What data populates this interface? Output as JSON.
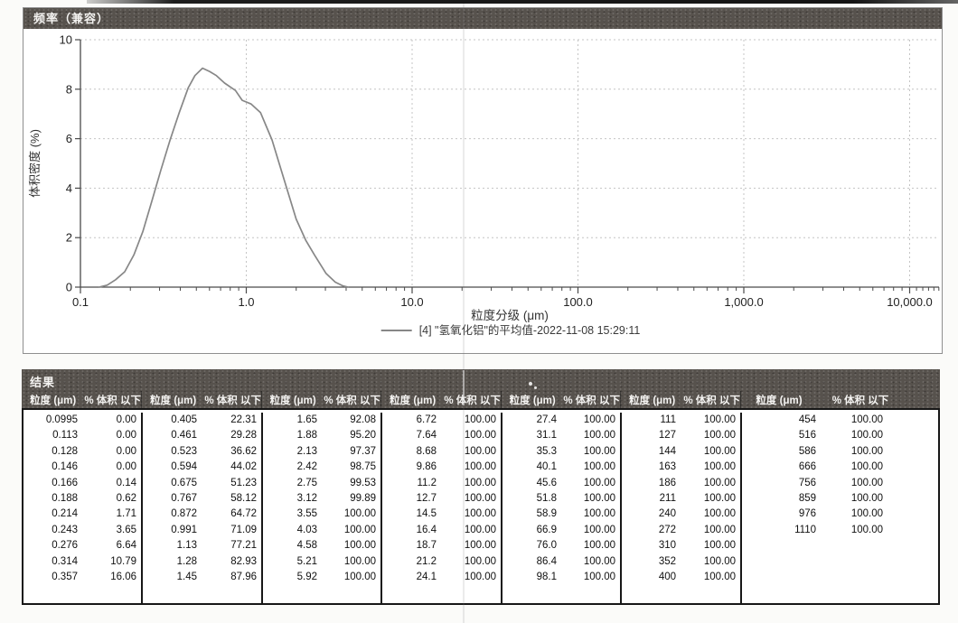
{
  "colors": {
    "header_bar": "#57524d",
    "curve": "#878787",
    "grid": "#c4c4c4",
    "axis": "#4a4a4a"
  },
  "chart_panel": {
    "title": "频率（兼容）"
  },
  "chart_data": {
    "type": "line",
    "title": "频率（兼容）",
    "xlabel": "粒度分级 (μm)",
    "ylabel": "体积密度 (%)",
    "x_scale": "log",
    "xlim": [
      0.1,
      15000
    ],
    "ylim": [
      0,
      10
    ],
    "grid": "dashed",
    "legend_position": "bottom-center",
    "x_tick_values": [
      0.1,
      1,
      10,
      100,
      1000,
      10000
    ],
    "x_tick_labels": [
      "0.1",
      "1.0",
      "10.0",
      "100.0",
      "1,000.0",
      "10,000.0"
    ],
    "y_ticks": [
      0,
      2,
      4,
      6,
      8,
      10
    ],
    "series": [
      {
        "name": "[4] \"氢氧化铝\"的平均值-2022-11-08 15:29:11",
        "color": "#878787",
        "points": [
          [
            0.13,
            0
          ],
          [
            0.145,
            0.08
          ],
          [
            0.163,
            0.3
          ],
          [
            0.185,
            0.62
          ],
          [
            0.21,
            1.3
          ],
          [
            0.238,
            2.25
          ],
          [
            0.27,
            3.5
          ],
          [
            0.305,
            4.72
          ],
          [
            0.347,
            5.95
          ],
          [
            0.394,
            7.05
          ],
          [
            0.446,
            8.05
          ],
          [
            0.49,
            8.55
          ],
          [
            0.545,
            8.85
          ],
          [
            0.6,
            8.72
          ],
          [
            0.66,
            8.55
          ],
          [
            0.74,
            8.25
          ],
          [
            0.86,
            7.95
          ],
          [
            0.945,
            7.55
          ],
          [
            1.07,
            7.4
          ],
          [
            1.22,
            7.05
          ],
          [
            1.43,
            5.95
          ],
          [
            1.69,
            4.35
          ],
          [
            2.0,
            2.75
          ],
          [
            2.28,
            1.9
          ],
          [
            2.58,
            1.3
          ],
          [
            3.03,
            0.55
          ],
          [
            3.44,
            0.2
          ],
          [
            3.8,
            0.06
          ],
          [
            4.1,
            0
          ]
        ]
      }
    ]
  },
  "results_panel": {
    "title": "结果",
    "size_header": "粒度 (μm)",
    "pct_header": "% 体积 以下",
    "groups": [
      [
        [
          "0.0995",
          "0.00"
        ],
        [
          "0.113",
          "0.00"
        ],
        [
          "0.128",
          "0.00"
        ],
        [
          "0.146",
          "0.00"
        ],
        [
          "0.166",
          "0.14"
        ],
        [
          "0.188",
          "0.62"
        ],
        [
          "0.214",
          "1.71"
        ],
        [
          "0.243",
          "3.65"
        ],
        [
          "0.276",
          "6.64"
        ],
        [
          "0.314",
          "10.79"
        ],
        [
          "0.357",
          "16.06"
        ]
      ],
      [
        [
          "0.405",
          "22.31"
        ],
        [
          "0.461",
          "29.28"
        ],
        [
          "0.523",
          "36.62"
        ],
        [
          "0.594",
          "44.02"
        ],
        [
          "0.675",
          "51.23"
        ],
        [
          "0.767",
          "58.12"
        ],
        [
          "0.872",
          "64.72"
        ],
        [
          "0.991",
          "71.09"
        ],
        [
          "1.13",
          "77.21"
        ],
        [
          "1.28",
          "82.93"
        ],
        [
          "1.45",
          "87.96"
        ]
      ],
      [
        [
          "1.65",
          "92.08"
        ],
        [
          "1.88",
          "95.20"
        ],
        [
          "2.13",
          "97.37"
        ],
        [
          "2.42",
          "98.75"
        ],
        [
          "2.75",
          "99.53"
        ],
        [
          "3.12",
          "99.89"
        ],
        [
          "3.55",
          "100.00"
        ],
        [
          "4.03",
          "100.00"
        ],
        [
          "4.58",
          "100.00"
        ],
        [
          "5.21",
          "100.00"
        ],
        [
          "5.92",
          "100.00"
        ]
      ],
      [
        [
          "6.72",
          "100.00"
        ],
        [
          "7.64",
          "100.00"
        ],
        [
          "8.68",
          "100.00"
        ],
        [
          "9.86",
          "100.00"
        ],
        [
          "11.2",
          "100.00"
        ],
        [
          "12.7",
          "100.00"
        ],
        [
          "14.5",
          "100.00"
        ],
        [
          "16.4",
          "100.00"
        ],
        [
          "18.7",
          "100.00"
        ],
        [
          "21.2",
          "100.00"
        ],
        [
          "24.1",
          "100.00"
        ]
      ],
      [
        [
          "27.4",
          "100.00"
        ],
        [
          "31.1",
          "100.00"
        ],
        [
          "35.3",
          "100.00"
        ],
        [
          "40.1",
          "100.00"
        ],
        [
          "45.6",
          "100.00"
        ],
        [
          "51.8",
          "100.00"
        ],
        [
          "58.9",
          "100.00"
        ],
        [
          "66.9",
          "100.00"
        ],
        [
          "76.0",
          "100.00"
        ],
        [
          "86.4",
          "100.00"
        ],
        [
          "98.1",
          "100.00"
        ]
      ],
      [
        [
          "111",
          "100.00"
        ],
        [
          "127",
          "100.00"
        ],
        [
          "144",
          "100.00"
        ],
        [
          "163",
          "100.00"
        ],
        [
          "186",
          "100.00"
        ],
        [
          "211",
          "100.00"
        ],
        [
          "240",
          "100.00"
        ],
        [
          "272",
          "100.00"
        ],
        [
          "310",
          "100.00"
        ],
        [
          "352",
          "100.00"
        ],
        [
          "400",
          "100.00"
        ]
      ],
      [
        [
          "454",
          "100.00"
        ],
        [
          "516",
          "100.00"
        ],
        [
          "586",
          "100.00"
        ],
        [
          "666",
          "100.00"
        ],
        [
          "756",
          "100.00"
        ],
        [
          "859",
          "100.00"
        ],
        [
          "976",
          "100.00"
        ],
        [
          "1110",
          "100.00"
        ]
      ]
    ]
  }
}
